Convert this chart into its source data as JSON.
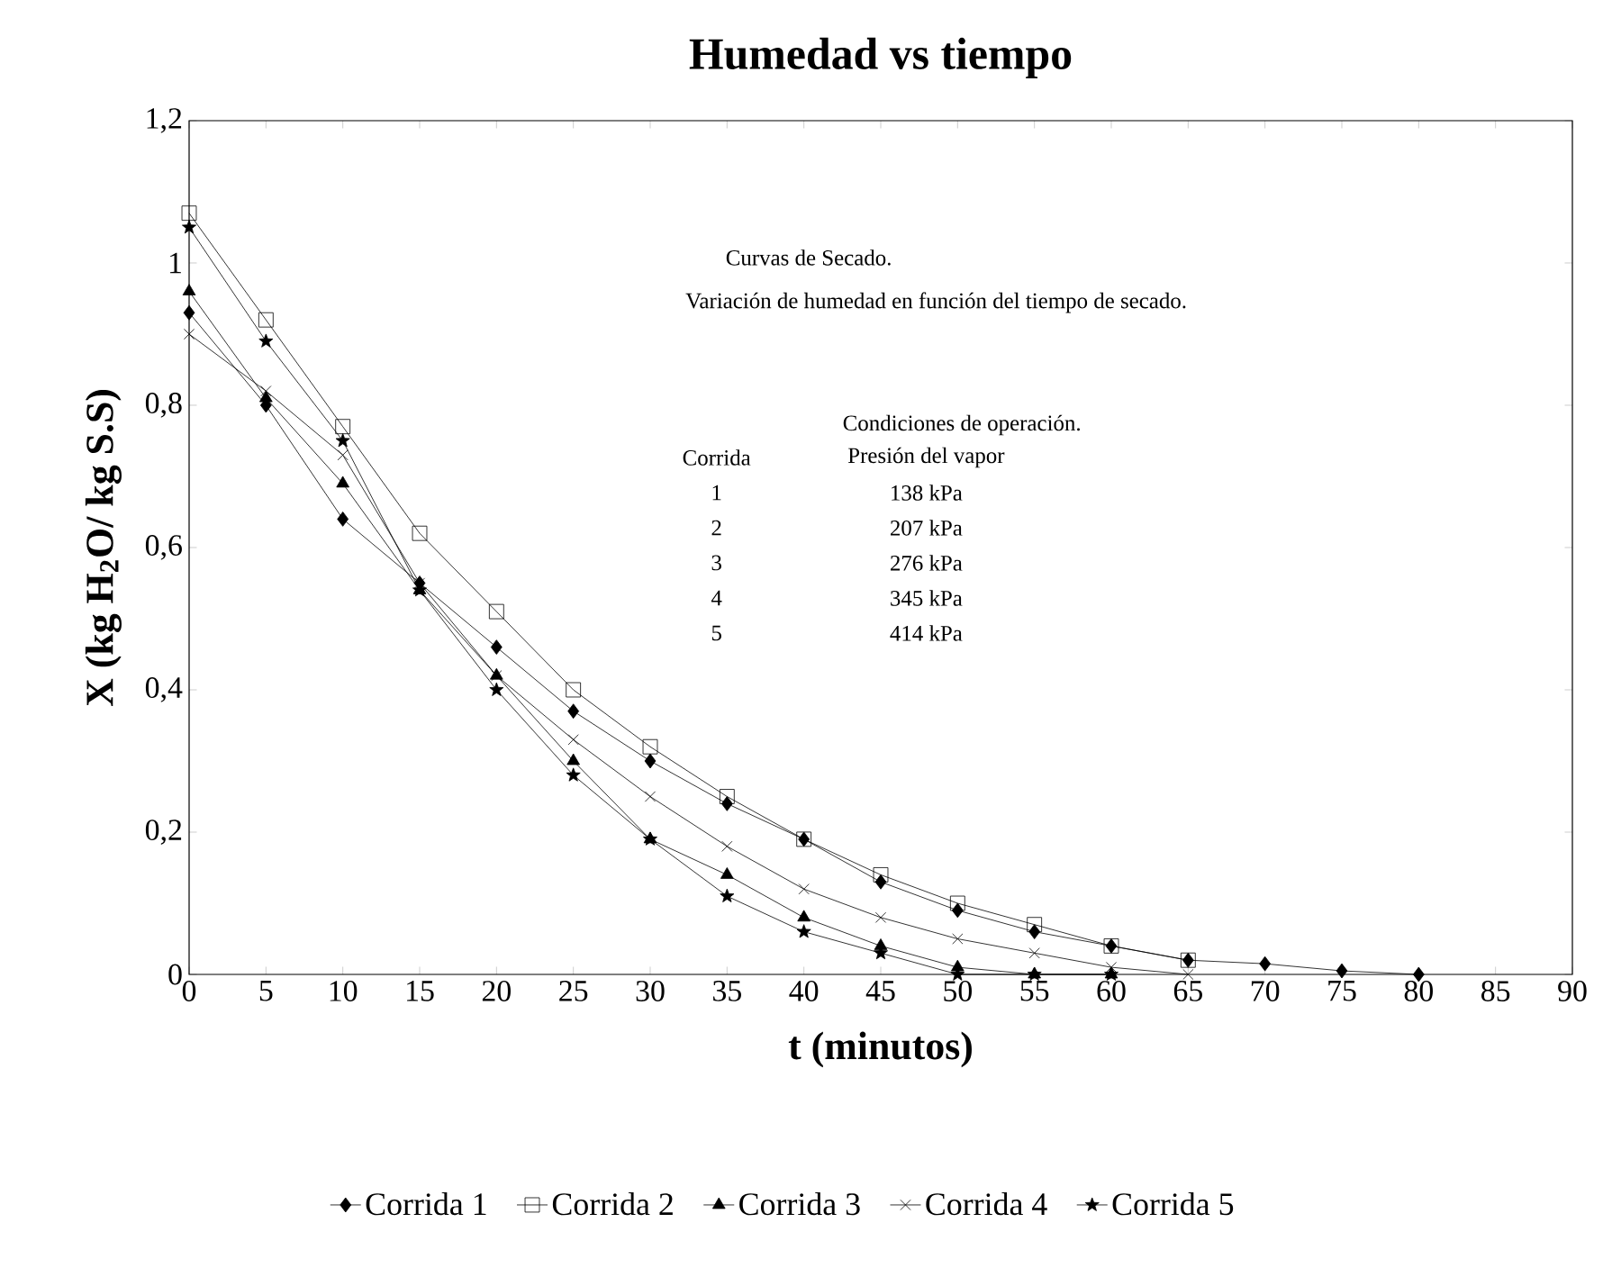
{
  "chart_data": {
    "type": "line",
    "title": "Humedad vs tiempo",
    "xlabel": "t   (minutos)",
    "ylabel": "X (kg H$_{2}$O/ kg S.S)",
    "xlim": [
      0,
      90
    ],
    "xticks": [
      0,
      5,
      10,
      15,
      20,
      25,
      30,
      35,
      40,
      45,
      50,
      55,
      60,
      65,
      70,
      75,
      80,
      85,
      90
    ],
    "ylim": [
      0,
      1.2
    ],
    "yticks": [
      0,
      {
        "value": 0.2,
        "label": "0,2"
      },
      {
        "value": 0.4,
        "label": "0,4"
      },
      {
        "value": 0.6,
        "label": "0,6"
      },
      {
        "value": 0.8,
        "label": "0,8"
      },
      1,
      {
        "value": 1.2,
        "label": "1,2"
      }
    ],
    "grid": false,
    "legend": "bottom",
    "line_style": "solid",
    "series": [
      {
        "name": "Corrida 1",
        "color": "#000000",
        "marker": "diamond",
        "x": [
          0,
          5,
          10,
          15,
          20,
          25,
          30,
          35,
          40,
          45,
          50,
          55,
          60,
          65,
          70,
          75,
          80
        ],
        "values": [
          0.93,
          0.8,
          0.64,
          0.55,
          0.46,
          0.37,
          0.3,
          0.24,
          0.19,
          0.13,
          0.09,
          0.06,
          0.04,
          0.02,
          0.015,
          0.005,
          0.0
        ]
      },
      {
        "name": "Corrida 2",
        "color": "#000000",
        "marker": "square",
        "x": [
          0,
          5,
          10,
          15,
          20,
          25,
          30,
          35,
          40,
          45,
          50,
          55,
          60,
          65
        ],
        "values": [
          1.07,
          0.92,
          0.77,
          0.62,
          0.51,
          0.4,
          0.32,
          0.25,
          0.19,
          0.14,
          0.1,
          0.07,
          0.04,
          0.02
        ]
      },
      {
        "name": "Corrida 3",
        "color": "#000000",
        "marker": "triangle",
        "x": [
          0,
          5,
          10,
          15,
          20,
          25,
          30,
          35,
          40,
          45,
          50,
          55,
          60
        ],
        "values": [
          0.96,
          0.81,
          0.69,
          0.54,
          0.42,
          0.3,
          0.19,
          0.14,
          0.08,
          0.04,
          0.01,
          0.0,
          0.0
        ]
      },
      {
        "name": "Corrida 4",
        "color": "#000000",
        "marker": "cross",
        "x": [
          0,
          5,
          10,
          15,
          20,
          25,
          30,
          35,
          40,
          45,
          50,
          55,
          60,
          65
        ],
        "values": [
          0.9,
          0.82,
          0.73,
          0.55,
          0.42,
          0.33,
          0.25,
          0.18,
          0.12,
          0.08,
          0.05,
          0.03,
          0.01,
          0.0
        ]
      },
      {
        "name": "Corrida 5",
        "color": "#000000",
        "marker": "star",
        "x": [
          0,
          5,
          10,
          15,
          20,
          25,
          30,
          35,
          40,
          45,
          50,
          55,
          60
        ],
        "values": [
          1.05,
          0.89,
          0.75,
          0.54,
          0.4,
          0.28,
          0.19,
          0.11,
          0.06,
          0.03,
          0.0,
          0.0,
          0.0
        ]
      }
    ],
    "annotations": [
      "Curvas de Secado.",
      "Variación de humedad en función del tiempo de  secado.",
      "Condiciones de operación.",
      "Corrida",
      "Presión del vapor",
      "1",
      "138 kPa",
      "2",
      "207 kPa",
      "3",
      "276 kPa",
      "4",
      "345 kPa",
      "5",
      "414 kPa"
    ]
  }
}
